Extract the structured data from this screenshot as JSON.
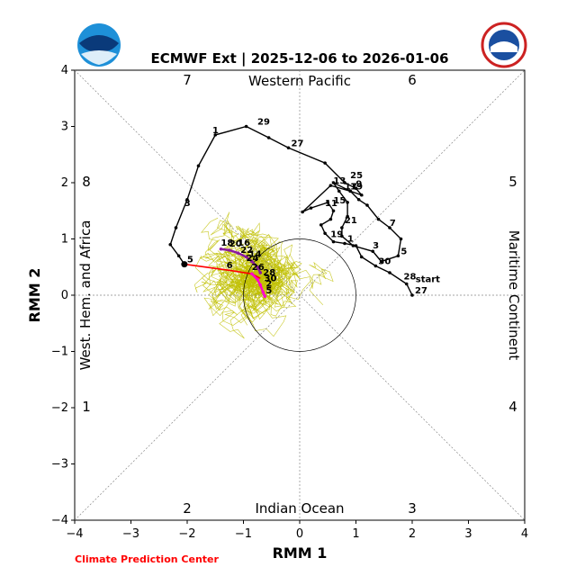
{
  "chart_data": {
    "type": "line",
    "title": "ECMWF Ext | 2025-12-06 to 2026-01-06",
    "xlabel": "RMM 1",
    "ylabel": "RMM 2",
    "xlim": [
      -4,
      4
    ],
    "ylim": [
      -4,
      4
    ],
    "xticks": [
      "−4",
      "−3",
      "−2",
      "−1",
      "0",
      "1",
      "2",
      "3",
      "4"
    ],
    "yticks": [
      "−4",
      "−3",
      "−2",
      "−1",
      "0",
      "1",
      "2",
      "3",
      "4"
    ],
    "regions": {
      "top": "Western Pacific",
      "bottom": "Indian Ocean",
      "left": "West. Hem. and Africa",
      "right": "Maritime Continent"
    },
    "phases": [
      "1",
      "2",
      "3",
      "4",
      "5",
      "6",
      "7",
      "8"
    ],
    "unit_circle_radius": 1,
    "observed": {
      "color": "#000000",
      "start_label": "start",
      "points": [
        [
          2.0,
          0.0
        ],
        [
          1.9,
          0.2
        ],
        [
          1.6,
          0.4
        ],
        [
          1.35,
          0.52
        ],
        [
          1.1,
          0.68
        ],
        [
          1.0,
          0.88
        ],
        [
          0.8,
          0.92
        ],
        [
          0.6,
          0.95
        ],
        [
          0.45,
          1.1
        ],
        [
          0.38,
          1.25
        ],
        [
          0.55,
          1.35
        ],
        [
          0.6,
          1.5
        ],
        [
          0.5,
          1.65
        ],
        [
          0.2,
          1.55
        ],
        [
          0.05,
          1.48
        ],
        [
          0.55,
          1.95
        ],
        [
          0.9,
          1.85
        ],
        [
          1.05,
          1.7
        ],
        [
          1.2,
          1.6
        ],
        [
          1.4,
          1.35
        ],
        [
          1.6,
          1.2
        ],
        [
          1.8,
          1.0
        ],
        [
          1.75,
          0.7
        ],
        [
          1.45,
          0.6
        ],
        [
          1.3,
          0.78
        ],
        [
          0.95,
          0.88
        ],
        [
          0.75,
          1.05
        ],
        [
          0.75,
          1.2
        ],
        [
          0.85,
          1.4
        ],
        [
          0.85,
          1.65
        ],
        [
          0.7,
          1.85
        ],
        [
          0.6,
          2.0
        ],
        [
          0.9,
          1.85
        ],
        [
          1.1,
          1.78
        ],
        [
          1.0,
          1.9
        ],
        [
          0.8,
          2.0
        ],
        [
          0.45,
          2.35
        ],
        [
          -0.2,
          2.62
        ],
        [
          -0.55,
          2.8
        ],
        [
          -0.95,
          3.0
        ],
        [
          -1.5,
          2.85
        ],
        [
          -1.8,
          2.3
        ],
        [
          -2.0,
          1.7
        ],
        [
          -2.2,
          1.2
        ],
        [
          -2.3,
          0.9
        ],
        [
          -2.15,
          0.7
        ],
        [
          -2.05,
          0.55
        ]
      ],
      "labels": [
        {
          "text": "27",
          "x": 2.0,
          "y": 0.0
        },
        {
          "text": "28",
          "x": 1.8,
          "y": 0.25
        },
        {
          "text": "30",
          "x": 1.35,
          "y": 0.52
        },
        {
          "text": "1",
          "x": 0.8,
          "y": 0.92
        },
        {
          "text": "19",
          "x": 0.5,
          "y": 1.0
        },
        {
          "text": "21",
          "x": 0.75,
          "y": 1.25
        },
        {
          "text": "15",
          "x": 0.55,
          "y": 1.6
        },
        {
          "text": "11",
          "x": 0.4,
          "y": 1.55
        },
        {
          "text": "13",
          "x": 0.55,
          "y": 1.95
        },
        {
          "text": "17",
          "x": 0.75,
          "y": 1.85
        },
        {
          "text": "19",
          "x": 0.85,
          "y": 1.85
        },
        {
          "text": "9",
          "x": 0.95,
          "y": 1.9
        },
        {
          "text": "25",
          "x": 0.85,
          "y": 2.05
        },
        {
          "text": "3",
          "x": 1.25,
          "y": 0.8
        },
        {
          "text": "5",
          "x": 1.75,
          "y": 0.7
        },
        {
          "text": "7",
          "x": 1.55,
          "y": 1.2
        },
        {
          "text": "27",
          "x": -0.2,
          "y": 2.62
        },
        {
          "text": "29",
          "x": -0.8,
          "y": 3.0
        },
        {
          "text": "1",
          "x": -1.6,
          "y": 2.85
        },
        {
          "text": "3",
          "x": -2.1,
          "y": 1.55
        },
        {
          "text": "5",
          "x": -2.05,
          "y": 0.55
        }
      ]
    },
    "forecast_red": {
      "color": "#ff0000",
      "points": [
        [
          -2.05,
          0.55
        ],
        [
          -1.3,
          0.45
        ],
        [
          -0.85,
          0.38
        ],
        [
          -0.7,
          0.3
        ]
      ],
      "labels": [
        {
          "text": "6",
          "x": -1.35,
          "y": 0.45
        }
      ]
    },
    "forecast_magenta": {
      "color": "#ff00cc",
      "points": [
        [
          -0.85,
          0.38
        ],
        [
          -0.75,
          0.28
        ],
        [
          -0.7,
          0.18
        ],
        [
          -0.65,
          0.05
        ],
        [
          -0.62,
          -0.02
        ]
      ],
      "labels": [
        {
          "text": "26",
          "x": -0.9,
          "y": 0.42
        },
        {
          "text": "28",
          "x": -0.7,
          "y": 0.32
        },
        {
          "text": "30",
          "x": -0.68,
          "y": 0.22
        },
        {
          "text": "2",
          "x": -0.65,
          "y": 0.12
        },
        {
          "text": "5",
          "x": -0.65,
          "y": 0.0
        }
      ]
    },
    "forecast_purple": {
      "color": "#8b1a9e",
      "points": [
        [
          -1.4,
          0.82
        ],
        [
          -1.25,
          0.8
        ],
        [
          -1.1,
          0.75
        ],
        [
          -0.95,
          0.68
        ],
        [
          -0.85,
          0.6
        ],
        [
          -0.75,
          0.5
        ],
        [
          -0.7,
          0.4
        ]
      ],
      "labels": [
        {
          "text": "18",
          "x": -1.45,
          "y": 0.85
        },
        {
          "text": "20",
          "x": -1.3,
          "y": 0.83
        },
        {
          "text": "16",
          "x": -1.15,
          "y": 0.85
        },
        {
          "text": "22",
          "x": -1.1,
          "y": 0.72
        },
        {
          "text": "14",
          "x": -0.95,
          "y": 0.65
        },
        {
          "text": "24",
          "x": -1.0,
          "y": 0.58
        }
      ]
    },
    "ensemble": {
      "color": "#bfbf00",
      "members": 50,
      "center": [
        -1.0,
        0.4
      ],
      "spread": [
        1.1,
        1.1
      ]
    },
    "credit": "Climate Prediction Center"
  }
}
